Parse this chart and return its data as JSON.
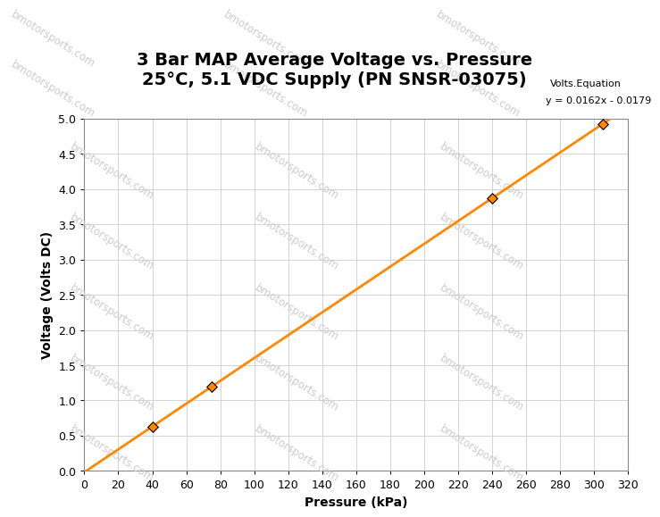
{
  "title_line1": "3 Bar MAP Average Voltage vs. Pressure",
  "title_line2": "25°C, 5.1 VDC Supply (PN SNSR-03075)",
  "xlabel": "Pressure (kPa)",
  "ylabel": "Voltage (Volts DC)",
  "legend_label": "Volts.Equation",
  "equation": "y = 0.0162x - 0.0179",
  "slope": 0.0162,
  "intercept": -0.0179,
  "data_x": [
    40,
    75,
    240,
    305
  ],
  "data_y": [
    0.63,
    1.2,
    3.87,
    4.92
  ],
  "line_color": "#FF8800",
  "marker_color": "#FF8800",
  "marker_edge_color": "#000000",
  "bg_color": "#FFFFFF",
  "grid_color": "#CCCCCC",
  "watermark_text": "bmotorsports.com",
  "watermark_color": "#CCCCCC",
  "xlim": [
    0,
    320
  ],
  "ylim": [
    0,
    5.0
  ],
  "xtick_major": 20,
  "ytick_major": 0.5,
  "title_fontsize": 14,
  "axis_label_fontsize": 10,
  "tick_fontsize": 9,
  "legend_fontsize": 8,
  "equation_fontsize": 8
}
